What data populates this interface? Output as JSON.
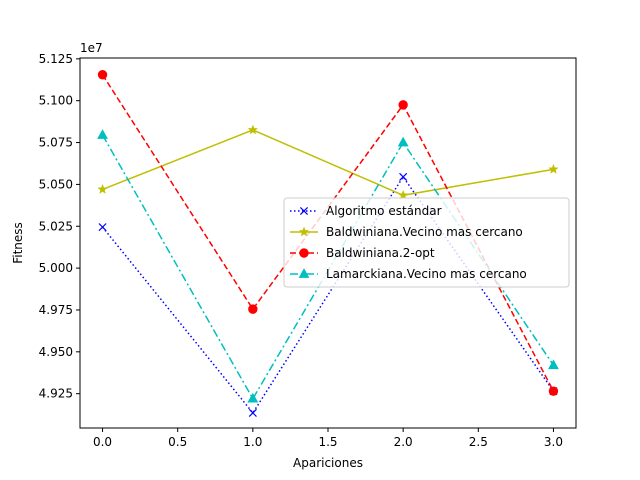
{
  "chart_data": {
    "type": "line",
    "xlabel": "Apariciones",
    "ylabel": "Fitness",
    "offset_label": "1e7",
    "scale": 10000000,
    "xlim": [
      -0.15,
      3.15
    ],
    "ylim": [
      4.9045,
      5.1255
    ],
    "x_ticks": [
      0.0,
      0.5,
      1.0,
      1.5,
      2.0,
      2.5,
      3.0
    ],
    "x_tick_labels": [
      "0.0",
      "0.5",
      "1.0",
      "1.5",
      "2.0",
      "2.5",
      "3.0"
    ],
    "y_ticks": [
      4.925,
      4.95,
      4.975,
      5.0,
      5.025,
      5.05,
      5.075,
      5.1,
      5.125
    ],
    "y_tick_labels": [
      "4.925",
      "4.950",
      "4.975",
      "5.000",
      "5.025",
      "5.050",
      "5.075",
      "5.100",
      "5.125"
    ],
    "grid": false,
    "legend_position": "center-right",
    "x": [
      0,
      1,
      2,
      3
    ],
    "series": [
      {
        "name": "Algoritmo estándar",
        "values": [
          5.0245,
          4.9135,
          5.0545,
          4.9265
        ],
        "color": "#0000ff",
        "linestyle": "dotted",
        "marker": "x"
      },
      {
        "name": "Baldwiniana.Vecino mas cercano",
        "values": [
          5.047,
          5.0825,
          5.0435,
          5.059
        ],
        "color": "#bfbf00",
        "linestyle": "solid",
        "marker": "star"
      },
      {
        "name": "Baldwiniana.2-opt",
        "values": [
          5.1155,
          4.9755,
          5.0975,
          4.9265
        ],
        "color": "#ff0000",
        "linestyle": "dashed",
        "marker": "circle"
      },
      {
        "name": "Lamarckiana.Vecino mas cercano",
        "values": [
          5.0795,
          4.922,
          5.075,
          4.942
        ],
        "color": "#00bfbf",
        "linestyle": "dashdot",
        "marker": "triangle"
      }
    ]
  }
}
